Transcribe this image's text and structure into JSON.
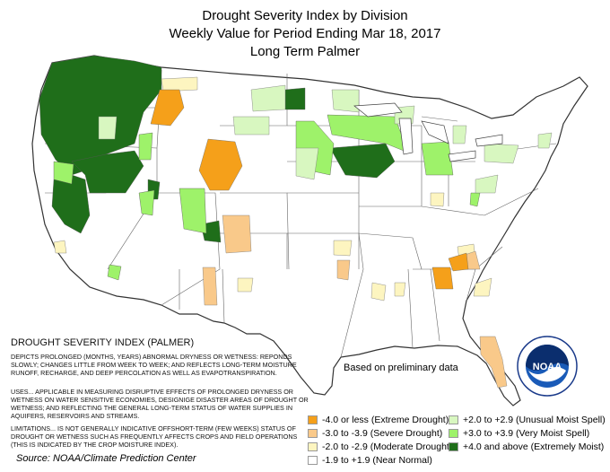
{
  "title": {
    "line1": "Drought Severity Index by Division",
    "line2": "Weekly Value for Period Ending Mar 18, 2017",
    "line3": "Long Term Palmer"
  },
  "explanation": {
    "heading": "DROUGHT SEVERITY INDEX (PALMER)",
    "depicts": "DEPICTS PROLONGED (MONTHS, YEARS) ABNORMAL DRYNESS OR WETNESS: REPONDS SLOWLY; CHANGES LITTLE FROM WEEK TO WEEK; AND REFLECTS LONG-TERM MOISTURE RUNOFF, RECHARGE, AND DEEP PERCOLATION AS WELL AS EVAPOTRANSPIRATION.",
    "uses": "USES... APPLICABLE IN MEASURING DISRUPTIVE EFFECTS OF PROLONGED DRYNESS OR WETNESS ON WATER SENSITIVE ECONOMIES, DESIGNIGE DISASTER AREAS OF DROUGHT OR WETNESS; AND REFLECTING THE GENERAL LONG-TERM STATUS OF WATER SUPPLIES IN AQUIFERS, RESERVOIRS AND STREAMS.",
    "limitations": "LIMITATIONS... IS NOT GENERALLY INDICATIVE OFFSHORT-TERM (FEW WEEKS) STATUS OF DROUGHT OR WETNESS SUCH AS FREQUENTLY AFFECTS CROPS AND FIELD OPERATIONS (THIS IS INDICATED BY THE CROP MOISTURE INDEX)."
  },
  "note": "Based on preliminary data",
  "source": "Source: NOAA/Climate Prediction Center",
  "logo": {
    "text": "NOAA",
    "icon": "noaa-logo"
  },
  "legend": [
    {
      "id": "extreme-drought",
      "label": "-4.0 or less (Extreme Drought)",
      "color": "#f5a01a"
    },
    {
      "id": "severe-drought",
      "label": "-3.0 to -3.9 (Severe Drought)",
      "color": "#f9c98a"
    },
    {
      "id": "moderate-drought",
      "label": "-2.0 to -2.9 (Moderate Drought)",
      "color": "#fdf5c0"
    },
    {
      "id": "near-normal",
      "label": "-1.9 to +1.9 (Near Normal)",
      "color": "#ffffff"
    },
    {
      "id": "unusual-moist",
      "label": "+2.0 to +2.9 (Unusual Moist Spell)",
      "color": "#d8f7c0"
    },
    {
      "id": "very-moist",
      "label": "+3.0 to +3.9 (Very Moist Spell)",
      "color": "#9ef26a"
    },
    {
      "id": "extremely-moist",
      "label": "+4.0 and above (Extremely Moist)",
      "color": "#1f6e1a"
    }
  ]
}
